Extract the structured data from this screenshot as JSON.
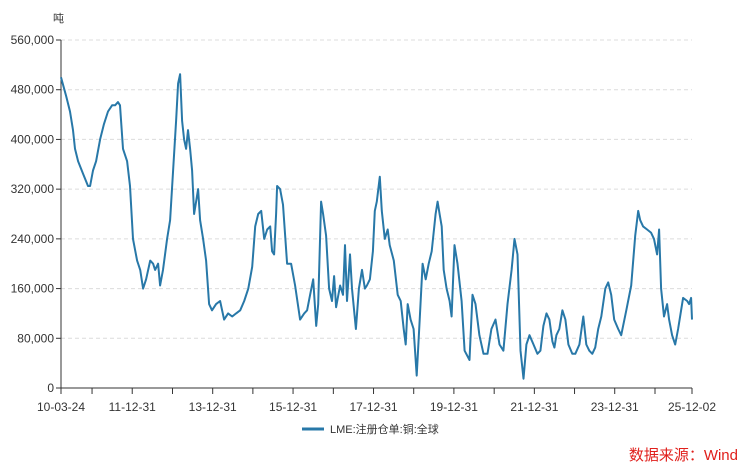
{
  "chart_data": {
    "type": "line",
    "title": "",
    "ylabel": "吨",
    "xlabel": "",
    "ylim": [
      0,
      560000
    ],
    "yticks": [
      0,
      80000,
      160000,
      240000,
      320000,
      400000,
      480000,
      560000
    ],
    "ytick_labels": [
      "0",
      "80,000",
      "160,000",
      "240,000",
      "320,000",
      "400,000",
      "480,000",
      "560,000"
    ],
    "xlim": [
      "2010-03-24",
      "2025-12-02"
    ],
    "xtick_labels": [
      "10-03-24",
      "11-12-31",
      "13-12-31",
      "15-12-31",
      "17-12-31",
      "19-12-31",
      "21-12-31",
      "23-12-31",
      "25-12-02"
    ],
    "grid": "horizontal dashed",
    "legend_position": "bottom",
    "series": [
      {
        "name": "LME:注册仓单:铜:全球",
        "color": "#2878a8",
        "points": [
          [
            "2010-03-24",
            500000
          ],
          [
            "2010-05-09",
            470000
          ],
          [
            "2010-06-14",
            445000
          ],
          [
            "2010-07-11",
            415000
          ],
          [
            "2010-07-29",
            385000
          ],
          [
            "2010-08-26",
            365000
          ],
          [
            "2010-10-10",
            345000
          ],
          [
            "2010-11-24",
            325000
          ],
          [
            "2010-12-13",
            325000
          ],
          [
            "2011-01-09",
            350000
          ],
          [
            "2011-02-06",
            365000
          ],
          [
            "2011-03-14",
            400000
          ],
          [
            "2011-04-19",
            425000
          ],
          [
            "2011-05-25",
            445000
          ],
          [
            "2011-07-01",
            455000
          ],
          [
            "2011-07-28",
            455000
          ],
          [
            "2011-08-24",
            460000
          ],
          [
            "2011-09-11",
            455000
          ],
          [
            "2011-10-08",
            385000
          ],
          [
            "2011-11-14",
            365000
          ],
          [
            "2011-12-11",
            325000
          ],
          [
            "2012-01-07",
            240000
          ],
          [
            "2012-02-13",
            205000
          ],
          [
            "2012-03-12",
            190000
          ],
          [
            "2012-04-08",
            160000
          ],
          [
            "2012-05-05",
            175000
          ],
          [
            "2012-06-11",
            205000
          ],
          [
            "2012-07-08",
            200000
          ],
          [
            "2012-07-26",
            190000
          ],
          [
            "2012-08-22",
            200000
          ],
          [
            "2012-09-09",
            165000
          ],
          [
            "2012-10-06",
            190000
          ],
          [
            "2012-11-12",
            240000
          ],
          [
            "2012-12-09",
            270000
          ],
          [
            "2013-01-05",
            350000
          ],
          [
            "2013-02-02",
            430000
          ],
          [
            "2013-02-20",
            490000
          ],
          [
            "2013-03-10",
            505000
          ],
          [
            "2013-03-28",
            430000
          ],
          [
            "2013-04-15",
            400000
          ],
          [
            "2013-05-03",
            385000
          ],
          [
            "2013-05-21",
            415000
          ],
          [
            "2013-06-09",
            385000
          ],
          [
            "2013-06-27",
            350000
          ],
          [
            "2013-07-15",
            280000
          ],
          [
            "2013-08-02",
            300000
          ],
          [
            "2013-08-20",
            320000
          ],
          [
            "2013-09-08",
            270000
          ],
          [
            "2013-10-05",
            240000
          ],
          [
            "2013-11-01",
            205000
          ],
          [
            "2013-11-28",
            135000
          ],
          [
            "2013-12-25",
            125000
          ],
          [
            "2014-01-31",
            135000
          ],
          [
            "2014-03-08",
            140000
          ],
          [
            "2014-04-14",
            110000
          ],
          [
            "2014-05-20",
            120000
          ],
          [
            "2014-06-26",
            115000
          ],
          [
            "2014-08-01",
            120000
          ],
          [
            "2014-09-07",
            125000
          ],
          [
            "2014-10-13",
            140000
          ],
          [
            "2014-11-19",
            160000
          ],
          [
            "2014-12-25",
            195000
          ],
          [
            "2015-01-21",
            260000
          ],
          [
            "2015-02-17",
            280000
          ],
          [
            "2015-03-17",
            285000
          ],
          [
            "2015-04-13",
            240000
          ],
          [
            "2015-05-10",
            255000
          ],
          [
            "2015-06-06",
            260000
          ],
          [
            "2015-06-24",
            220000
          ],
          [
            "2015-07-12",
            215000
          ],
          [
            "2015-07-30",
            280000
          ],
          [
            "2015-08-08",
            325000
          ],
          [
            "2015-09-04",
            320000
          ],
          [
            "2015-10-01",
            295000
          ],
          [
            "2015-11-07",
            200000
          ],
          [
            "2015-12-13",
            200000
          ],
          [
            "2016-01-19",
            165000
          ],
          [
            "2016-03-04",
            110000
          ],
          [
            "2016-04-10",
            120000
          ],
          [
            "2016-05-07",
            125000
          ],
          [
            "2016-06-03",
            150000
          ],
          [
            "2016-07-01",
            175000
          ],
          [
            "2016-07-28",
            100000
          ],
          [
            "2016-08-15",
            135000
          ],
          [
            "2016-09-11",
            300000
          ],
          [
            "2016-09-29",
            280000
          ],
          [
            "2016-10-26",
            245000
          ],
          [
            "2016-11-22",
            160000
          ],
          [
            "2016-12-19",
            140000
          ],
          [
            "2017-01-07",
            180000
          ],
          [
            "2017-01-25",
            130000
          ],
          [
            "2017-03-02",
            165000
          ],
          [
            "2017-03-29",
            150000
          ],
          [
            "2017-04-16",
            230000
          ],
          [
            "2017-05-04",
            140000
          ],
          [
            "2017-05-31",
            215000
          ],
          [
            "2017-06-18",
            160000
          ],
          [
            "2017-07-24",
            95000
          ],
          [
            "2017-08-20",
            160000
          ],
          [
            "2017-09-17",
            190000
          ],
          [
            "2017-10-14",
            160000
          ],
          [
            "2017-11-01",
            165000
          ],
          [
            "2017-11-28",
            175000
          ],
          [
            "2017-12-25",
            220000
          ],
          [
            "2018-01-12",
            285000
          ],
          [
            "2018-01-30",
            300000
          ],
          [
            "2018-02-26",
            340000
          ],
          [
            "2018-03-16",
            285000
          ],
          [
            "2018-04-12",
            240000
          ],
          [
            "2018-05-09",
            255000
          ],
          [
            "2018-05-27",
            230000
          ],
          [
            "2018-07-03",
            205000
          ],
          [
            "2018-08-08",
            150000
          ],
          [
            "2018-09-04",
            140000
          ],
          [
            "2018-10-01",
            95000
          ],
          [
            "2018-10-19",
            70000
          ],
          [
            "2018-11-06",
            135000
          ],
          [
            "2018-12-03",
            110000
          ],
          [
            "2018-12-30",
            95000
          ],
          [
            "2019-01-27",
            20000
          ],
          [
            "2019-02-23",
            110000
          ],
          [
            "2019-03-22",
            200000
          ],
          [
            "2019-04-19",
            175000
          ],
          [
            "2019-05-16",
            200000
          ],
          [
            "2019-06-12",
            220000
          ],
          [
            "2019-07-18",
            280000
          ],
          [
            "2019-08-05",
            300000
          ],
          [
            "2019-08-23",
            280000
          ],
          [
            "2019-09-11",
            260000
          ],
          [
            "2019-09-29",
            190000
          ],
          [
            "2019-10-26",
            160000
          ],
          [
            "2019-11-22",
            140000
          ],
          [
            "2019-12-10",
            115000
          ],
          [
            "2020-01-06",
            230000
          ],
          [
            "2020-02-02",
            200000
          ],
          [
            "2020-03-10",
            140000
          ],
          [
            "2020-04-06",
            60000
          ],
          [
            "2020-05-21",
            45000
          ],
          [
            "2020-06-17",
            150000
          ],
          [
            "2020-07-14",
            135000
          ],
          [
            "2020-08-19",
            85000
          ],
          [
            "2020-09-25",
            55000
          ],
          [
            "2020-10-31",
            55000
          ],
          [
            "2020-12-06",
            95000
          ],
          [
            "2021-01-12",
            110000
          ],
          [
            "2021-02-17",
            70000
          ],
          [
            "2021-03-25",
            60000
          ],
          [
            "2021-05-01",
            135000
          ],
          [
            "2021-06-07",
            190000
          ],
          [
            "2021-07-04",
            240000
          ],
          [
            "2021-07-31",
            215000
          ],
          [
            "2021-08-27",
            60000
          ],
          [
            "2021-09-23",
            15000
          ],
          [
            "2021-10-20",
            70000
          ],
          [
            "2021-11-17",
            85000
          ],
          [
            "2021-12-23",
            70000
          ],
          [
            "2022-01-28",
            55000
          ],
          [
            "2022-02-24",
            60000
          ],
          [
            "2022-03-23",
            100000
          ],
          [
            "2022-04-20",
            120000
          ],
          [
            "2022-05-17",
            110000
          ],
          [
            "2022-06-13",
            75000
          ],
          [
            "2022-07-01",
            65000
          ],
          [
            "2022-07-19",
            85000
          ],
          [
            "2022-08-15",
            95000
          ],
          [
            "2022-09-12",
            125000
          ],
          [
            "2022-10-09",
            110000
          ],
          [
            "2022-11-05",
            70000
          ],
          [
            "2022-12-11",
            55000
          ],
          [
            "2023-01-07",
            55000
          ],
          [
            "2023-02-13",
            70000
          ],
          [
            "2023-03-21",
            115000
          ],
          [
            "2023-04-17",
            70000
          ],
          [
            "2023-05-14",
            60000
          ],
          [
            "2023-06-10",
            55000
          ],
          [
            "2023-07-07",
            65000
          ],
          [
            "2023-08-03",
            95000
          ],
          [
            "2023-08-31",
            115000
          ],
          [
            "2023-10-06",
            160000
          ],
          [
            "2023-11-02",
            170000
          ],
          [
            "2023-11-29",
            150000
          ],
          [
            "2023-12-26",
            110000
          ],
          [
            "2024-02-01",
            95000
          ],
          [
            "2024-02-28",
            85000
          ],
          [
            "2024-04-14",
            125000
          ],
          [
            "2024-05-29",
            165000
          ],
          [
            "2024-07-04",
            245000
          ],
          [
            "2024-07-31",
            285000
          ],
          [
            "2024-08-18",
            270000
          ],
          [
            "2024-09-14",
            260000
          ],
          [
            "2024-10-20",
            255000
          ],
          [
            "2024-11-25",
            250000
          ],
          [
            "2024-12-22",
            240000
          ],
          [
            "2025-01-19",
            215000
          ],
          [
            "2025-02-06",
            255000
          ],
          [
            "2025-02-24",
            160000
          ],
          [
            "2025-03-23",
            115000
          ],
          [
            "2025-04-20",
            135000
          ],
          [
            "2025-05-08",
            110000
          ],
          [
            "2025-06-04",
            85000
          ],
          [
            "2025-07-02",
            70000
          ],
          [
            "2025-07-29",
            95000
          ],
          [
            "2025-08-25",
            125000
          ],
          [
            "2025-09-12",
            145000
          ],
          [
            "2025-10-19",
            140000
          ],
          [
            "2025-11-06",
            135000
          ],
          [
            "2025-11-24",
            145000
          ],
          [
            "2025-12-02",
            110000
          ]
        ]
      }
    ]
  },
  "source_note": "数据来源：Wind"
}
